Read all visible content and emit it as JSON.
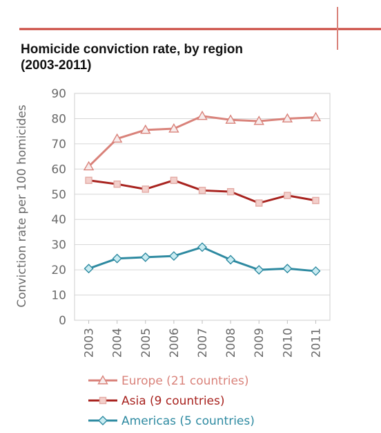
{
  "chart_data": {
    "type": "line",
    "title_lines": [
      "Homicide conviction rate, by region",
      "(2003-2011)"
    ],
    "xlabel": "",
    "ylabel": "Conviction rate per 100 homicides",
    "categories": [
      "2003",
      "2004",
      "2005",
      "2006",
      "2007",
      "2008",
      "2009",
      "2010",
      "2011"
    ],
    "ylim": [
      0,
      90
    ],
    "yticks": [
      0,
      10,
      20,
      30,
      40,
      50,
      60,
      70,
      80,
      90
    ],
    "grid": true,
    "legend_position": "bottom",
    "series": [
      {
        "name": "Europe (21 countries)",
        "color": "#d9827a",
        "marker": "triangle",
        "values": [
          61,
          72,
          75.5,
          76,
          81,
          79.5,
          79,
          80,
          80.5
        ]
      },
      {
        "name": "Asia (9 countries)",
        "color": "#a8231f",
        "marker": "square",
        "values": [
          55.5,
          54,
          52,
          55.5,
          51.5,
          51,
          46.5,
          49.5,
          47.5
        ]
      },
      {
        "name": "Americas (5 countries)",
        "color": "#2e8aa1",
        "marker": "diamond",
        "values": [
          20.5,
          24.5,
          25,
          25.5,
          29,
          24,
          20,
          20.5,
          19.5
        ]
      }
    ]
  }
}
